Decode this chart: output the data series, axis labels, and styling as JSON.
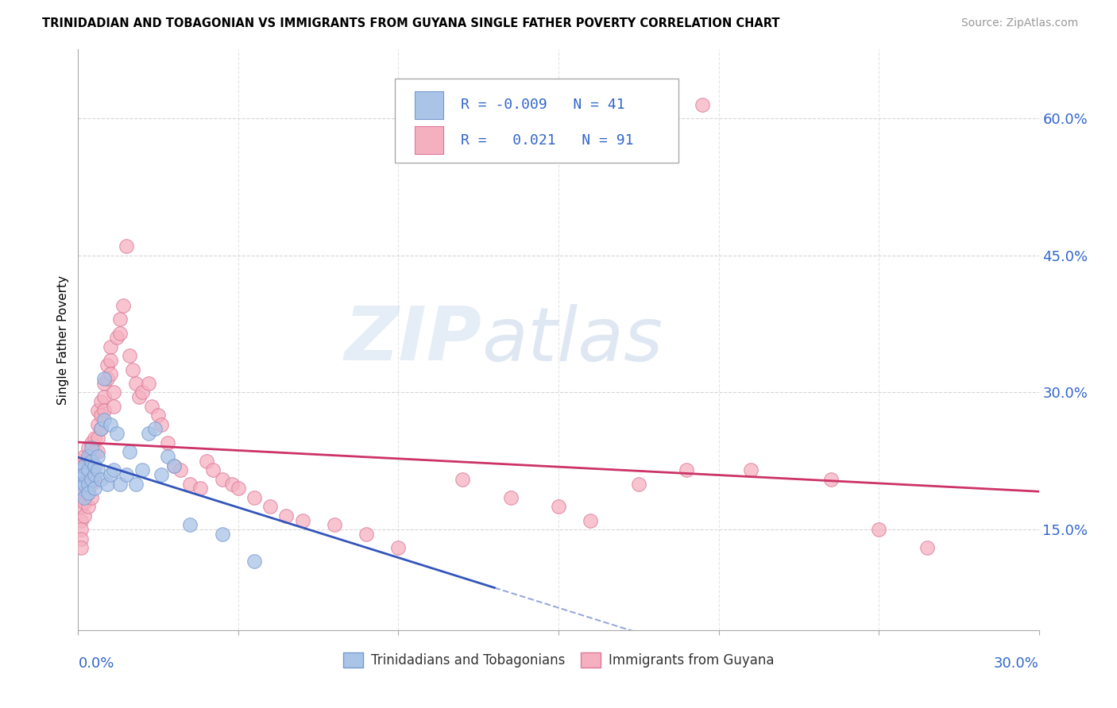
{
  "title": "TRINIDADIAN AND TOBAGONIAN VS IMMIGRANTS FROM GUYANA SINGLE FATHER POVERTY CORRELATION CHART",
  "source": "Source: ZipAtlas.com",
  "ylabel": "Single Father Poverty",
  "ytick_vals": [
    0.15,
    0.3,
    0.45,
    0.6
  ],
  "xlim": [
    0.0,
    0.3
  ],
  "ylim": [
    0.04,
    0.675
  ],
  "watermark_zip": "ZIP",
  "watermark_atlas": "atlas",
  "legend_R1": "-0.009",
  "legend_N1": "41",
  "legend_R2": "0.021",
  "legend_N2": "91",
  "series1_face": "#aac4e8",
  "series2_face": "#f5b0c0",
  "series1_edge": "#7799cc",
  "series2_edge": "#dd7799",
  "trend1_color": "#3355bb",
  "trend2_color": "#cc3366",
  "grid_color": "#cccccc",
  "tick_label_color": "#3366cc",
  "blue_x": [
    0.001,
    0.001,
    0.001,
    0.002,
    0.002,
    0.002,
    0.002,
    0.003,
    0.003,
    0.003,
    0.003,
    0.004,
    0.004,
    0.004,
    0.005,
    0.005,
    0.005,
    0.006,
    0.006,
    0.007,
    0.007,
    0.008,
    0.008,
    0.009,
    0.01,
    0.01,
    0.011,
    0.012,
    0.013,
    0.015,
    0.016,
    0.018,
    0.02,
    0.022,
    0.024,
    0.026,
    0.028,
    0.03,
    0.035,
    0.045,
    0.055
  ],
  "blue_y": [
    0.205,
    0.215,
    0.195,
    0.22,
    0.2,
    0.21,
    0.185,
    0.23,
    0.215,
    0.2,
    0.19,
    0.225,
    0.205,
    0.24,
    0.21,
    0.22,
    0.195,
    0.215,
    0.23,
    0.205,
    0.26,
    0.27,
    0.315,
    0.2,
    0.21,
    0.265,
    0.215,
    0.255,
    0.2,
    0.21,
    0.235,
    0.2,
    0.215,
    0.255,
    0.26,
    0.21,
    0.23,
    0.22,
    0.155,
    0.145,
    0.115
  ],
  "pink_x": [
    0.001,
    0.001,
    0.001,
    0.001,
    0.001,
    0.001,
    0.001,
    0.001,
    0.001,
    0.001,
    0.002,
    0.002,
    0.002,
    0.002,
    0.002,
    0.002,
    0.002,
    0.003,
    0.003,
    0.003,
    0.003,
    0.003,
    0.003,
    0.004,
    0.004,
    0.004,
    0.004,
    0.004,
    0.005,
    0.005,
    0.005,
    0.005,
    0.006,
    0.006,
    0.006,
    0.006,
    0.007,
    0.007,
    0.007,
    0.008,
    0.008,
    0.008,
    0.009,
    0.009,
    0.01,
    0.01,
    0.01,
    0.011,
    0.011,
    0.012,
    0.013,
    0.013,
    0.014,
    0.015,
    0.016,
    0.017,
    0.018,
    0.019,
    0.02,
    0.022,
    0.023,
    0.025,
    0.026,
    0.028,
    0.03,
    0.032,
    0.035,
    0.038,
    0.04,
    0.042,
    0.045,
    0.048,
    0.05,
    0.055,
    0.06,
    0.065,
    0.07,
    0.08,
    0.09,
    0.1,
    0.12,
    0.135,
    0.15,
    0.16,
    0.175,
    0.19,
    0.195,
    0.21,
    0.235,
    0.25,
    0.265
  ],
  "pink_y": [
    0.225,
    0.215,
    0.2,
    0.19,
    0.185,
    0.175,
    0.16,
    0.15,
    0.14,
    0.13,
    0.23,
    0.22,
    0.21,
    0.2,
    0.19,
    0.18,
    0.165,
    0.24,
    0.225,
    0.215,
    0.2,
    0.19,
    0.175,
    0.245,
    0.23,
    0.215,
    0.2,
    0.185,
    0.25,
    0.235,
    0.22,
    0.205,
    0.28,
    0.265,
    0.25,
    0.235,
    0.29,
    0.275,
    0.26,
    0.31,
    0.295,
    0.28,
    0.33,
    0.315,
    0.35,
    0.335,
    0.32,
    0.3,
    0.285,
    0.36,
    0.38,
    0.365,
    0.395,
    0.46,
    0.34,
    0.325,
    0.31,
    0.295,
    0.3,
    0.31,
    0.285,
    0.275,
    0.265,
    0.245,
    0.22,
    0.215,
    0.2,
    0.195,
    0.225,
    0.215,
    0.205,
    0.2,
    0.195,
    0.185,
    0.175,
    0.165,
    0.16,
    0.155,
    0.145,
    0.13,
    0.205,
    0.185,
    0.175,
    0.16,
    0.2,
    0.215,
    0.615,
    0.215,
    0.205,
    0.15,
    0.13
  ]
}
